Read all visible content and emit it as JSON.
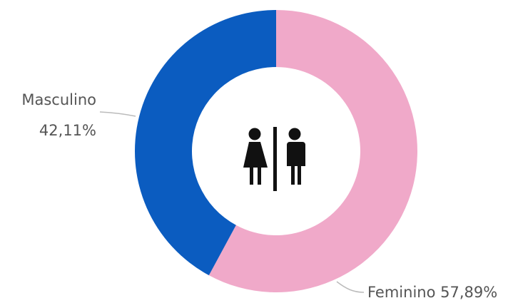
{
  "chart_data": {
    "type": "donut",
    "categories": [
      "Feminino",
      "Masculino"
    ],
    "values": [
      57.89,
      42.11
    ],
    "value_labels": [
      "57,89%",
      "42,11%"
    ],
    "colors": [
      "#f0a9c9",
      "#0b5cc0"
    ]
  }
}
